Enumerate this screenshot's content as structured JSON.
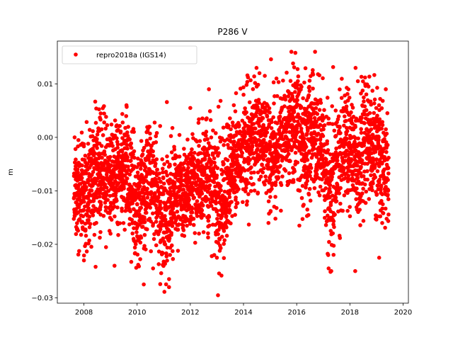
{
  "chart_data": {
    "type": "scatter",
    "title": "P286 V",
    "xlabel": "",
    "ylabel": "m",
    "xlim": [
      2007.0,
      2020.2
    ],
    "ylim": [
      -0.031,
      0.018
    ],
    "xticks": [
      2008,
      2010,
      2012,
      2014,
      2016,
      2018,
      2020
    ],
    "xtick_labels": [
      "2008",
      "2010",
      "2012",
      "2014",
      "2016",
      "2018",
      "2020"
    ],
    "yticks": [
      -0.03,
      -0.02,
      -0.01,
      0.0,
      0.01
    ],
    "ytick_labels": [
      "−0.03",
      "−0.02",
      "−0.01",
      "0.00",
      "0.01"
    ],
    "grid": false,
    "legend": {
      "position": "top-left",
      "entries": [
        "repro2018a (IGS14)"
      ]
    },
    "series": [
      {
        "name": "repro2018a (IGS14)",
        "color": "#ff0000",
        "marker": "circle",
        "trend": {
          "x": [
            2007.6,
            2008.0,
            2008.5,
            2009.0,
            2009.5,
            2010.0,
            2010.5,
            2011.0,
            2011.3,
            2011.6,
            2012.0,
            2012.5,
            2013.0,
            2013.3,
            2013.6,
            2014.0,
            2014.5,
            2015.0,
            2015.5,
            2016.0,
            2016.3,
            2016.6,
            2017.0,
            2017.3,
            2017.6,
            2018.0,
            2018.3,
            2018.6,
            2019.0,
            2019.45
          ],
          "y": [
            -0.011,
            -0.01,
            -0.006,
            -0.007,
            -0.005,
            -0.012,
            -0.008,
            -0.015,
            -0.013,
            -0.011,
            -0.009,
            -0.006,
            -0.01,
            -0.013,
            -0.005,
            -0.002,
            0.001,
            -0.003,
            -0.001,
            0.003,
            -0.004,
            0.002,
            -0.004,
            -0.01,
            -0.003,
            -0.002,
            -0.006,
            0.001,
            -0.003,
            -0.006
          ],
          "spread": [
            0.004,
            0.005,
            0.005,
            0.005,
            0.005,
            0.006,
            0.005,
            0.006,
            0.005,
            0.005,
            0.004,
            0.005,
            0.006,
            0.006,
            0.005,
            0.005,
            0.005,
            0.005,
            0.005,
            0.005,
            0.006,
            0.005,
            0.005,
            0.007,
            0.006,
            0.005,
            0.006,
            0.005,
            0.006,
            0.006
          ]
        },
        "sampling": {
          "start": 2007.62,
          "end": 2019.46,
          "step_days": 1
        },
        "points": [
          [
            2007.65,
            0.0
          ],
          [
            2008.0,
            -0.023
          ],
          [
            2008.6,
            0.0037
          ],
          [
            2009.6,
            0.006
          ],
          [
            2009.15,
            -0.024
          ],
          [
            2010.25,
            -0.0275
          ],
          [
            2011.2,
            -0.028
          ],
          [
            2011.2,
            -0.0265
          ],
          [
            2012.0,
            0.0055
          ],
          [
            2012.7,
            0.009
          ],
          [
            2014.6,
            0.012
          ],
          [
            2015.8,
            0.016
          ],
          [
            2015.95,
            0.0158
          ],
          [
            2016.6,
            0.012
          ],
          [
            2017.2,
            -0.0245
          ],
          [
            2017.3,
            -0.025
          ],
          [
            2018.3,
            0.0105
          ],
          [
            2018.2,
            -0.025
          ],
          [
            2019.35,
            0.009
          ],
          [
            2019.1,
            -0.0225
          ],
          [
            2014.2,
            -0.0163
          ],
          [
            2015.2,
            -0.0152
          ],
          [
            2016.1,
            -0.0165
          ],
          [
            2016.4,
            -0.0135
          ],
          [
            2013.0,
            -0.0225
          ],
          [
            2012.9,
            -0.022
          ],
          [
            2010.6,
            -0.0245
          ],
          [
            2009.0,
            -0.018
          ],
          [
            2014.8,
            0.0115
          ],
          [
            2016.8,
            0.0118
          ],
          [
            2018.7,
            0.0095
          ],
          [
            2015.7,
            0.0085
          ]
        ]
      }
    ]
  }
}
